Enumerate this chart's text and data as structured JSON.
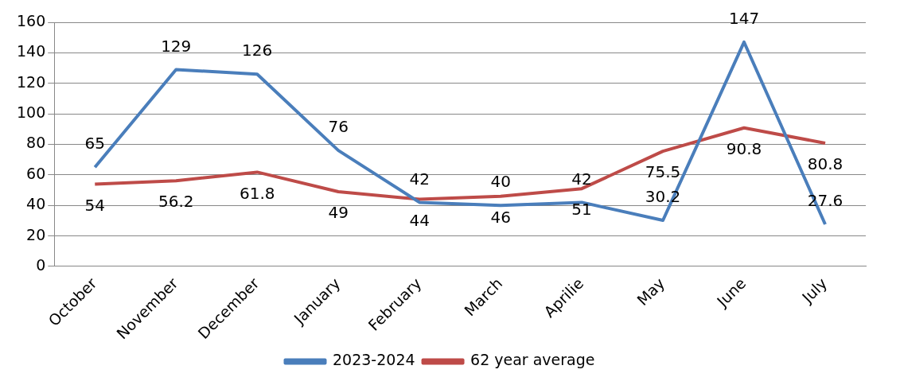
{
  "chart_data": {
    "type": "line",
    "categories": [
      "October",
      "November",
      "December",
      "January",
      "February",
      "March",
      "Aprilie",
      "May",
      "June",
      "July"
    ],
    "series": [
      {
        "name": "2023-2024",
        "color": "#4a7ebb",
        "values": [
          65,
          129,
          126,
          76,
          42,
          40,
          42,
          30.2,
          147,
          27.6
        ]
      },
      {
        "name": "62 year average",
        "color": "#be4b48",
        "values": [
          54,
          56.2,
          61.8,
          49,
          44,
          46,
          51,
          75.5,
          90.8,
          80.8
        ]
      }
    ],
    "ylim": [
      0,
      160
    ],
    "yticks": [
      0,
      20,
      40,
      60,
      80,
      100,
      120,
      140,
      160
    ],
    "grid": "y",
    "legend": "bottom",
    "data_labels": true,
    "marker": "none",
    "line_style": "solid"
  }
}
